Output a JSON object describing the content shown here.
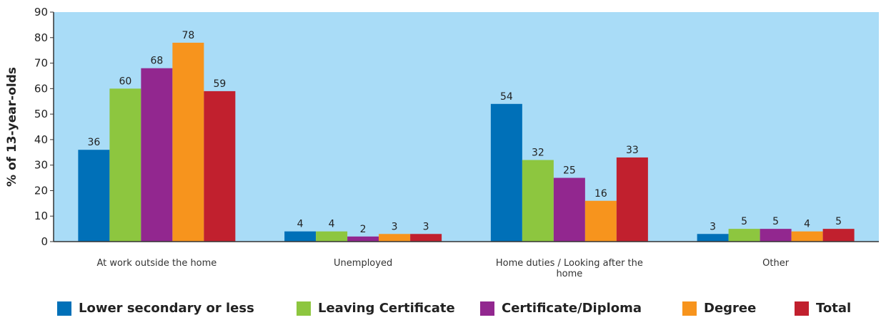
{
  "chart_data": {
    "type": "bar",
    "ylabel": "% of 13-year-olds",
    "categories": [
      "At work outside the home",
      "Unemployed",
      "Home duties / Looking after the home",
      "Other"
    ],
    "series": [
      {
        "name": "Lower secondary or less",
        "color": "#0070b8",
        "values": [
          36,
          4,
          54,
          3
        ]
      },
      {
        "name": "Leaving Certificate",
        "color": "#8dc63f",
        "values": [
          60,
          4,
          32,
          5
        ]
      },
      {
        "name": "Certificate/Diploma",
        "color": "#92278f",
        "values": [
          68,
          2,
          25,
          5
        ]
      },
      {
        "name": "Degree",
        "color": "#f7941d",
        "values": [
          78,
          3,
          16,
          4
        ]
      },
      {
        "name": "Total",
        "color": "#c1202e",
        "values": [
          59,
          3,
          33,
          5
        ]
      }
    ],
    "ylim": [
      0,
      90
    ],
    "yticks": [
      0,
      10,
      20,
      30,
      40,
      50,
      60,
      70,
      80,
      90
    ],
    "grid": false,
    "legend": "bottom",
    "background": "#a9dcf7"
  }
}
